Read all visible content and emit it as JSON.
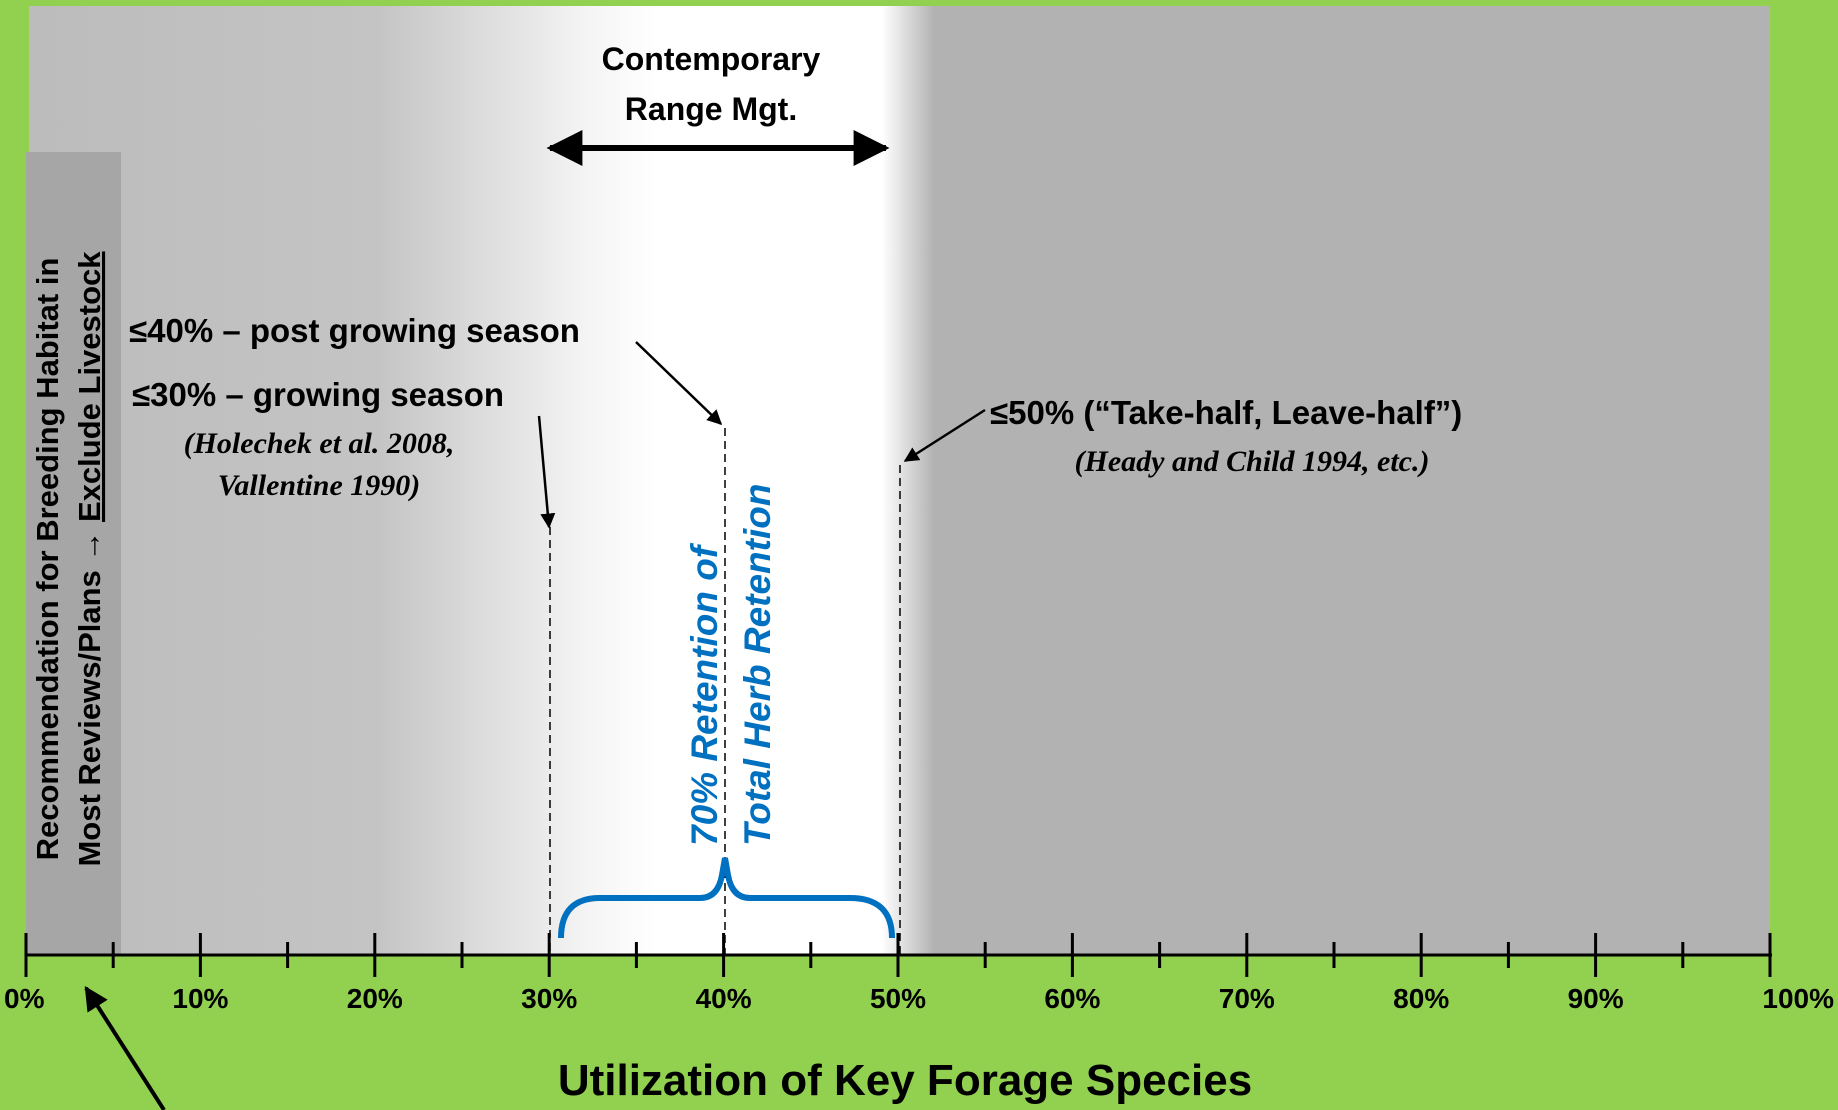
{
  "header": {
    "title_lines": [
      "Contemporary",
      "Range Mgt."
    ]
  },
  "side_note": {
    "line1": "Recommendation  for Breeding Habitat in",
    "line2_prefix": "Most Reviews/Plans → ",
    "line2_underlined": "Exclude Livestock"
  },
  "annotations": {
    "post_growing": "≤40% – post growing season",
    "growing": "≤30% – growing season",
    "growing_source": [
      "(Holechek et al. 2008,",
      "Vallentine 1990)"
    ],
    "take_half": "≤50% (“Take-half, Leave-half”)",
    "take_half_source": "(Heady and Child 1994, etc.)",
    "retention": [
      "70% Retention of",
      "Total Herb Retention"
    ]
  },
  "axis": {
    "title": "Utilization of Key Forage Species",
    "ticks": [
      "0%",
      "10%",
      "20%",
      "30%",
      "40%",
      "50%",
      "60%",
      "70%",
      "80%",
      "90%",
      "100%"
    ]
  }
}
